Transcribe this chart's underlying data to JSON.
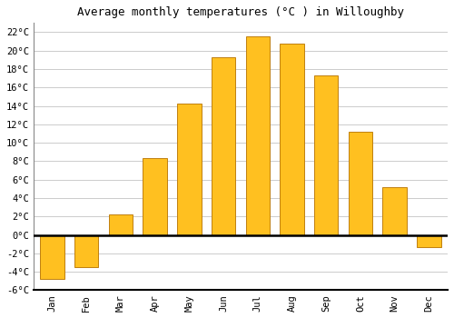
{
  "title": "Average monthly temperatures (°C ) in Willoughby",
  "months": [
    "Jan",
    "Feb",
    "Mar",
    "Apr",
    "May",
    "Jun",
    "Jul",
    "Aug",
    "Sep",
    "Oct",
    "Nov",
    "Dec"
  ],
  "values": [
    -4.8,
    -3.5,
    2.2,
    8.3,
    14.3,
    19.3,
    21.5,
    20.8,
    17.3,
    11.2,
    5.2,
    -1.3
  ],
  "bar_color_face": "#FFC020",
  "bar_color_edge": "#C08010",
  "background_color": "#FFFFFF",
  "grid_color": "#CCCCCC",
  "ylim": [
    -6,
    23
  ],
  "yticks": [
    -6,
    -4,
    -2,
    0,
    2,
    4,
    6,
    8,
    10,
    12,
    14,
    16,
    18,
    20,
    22
  ],
  "ytick_labels": [
    "-6°C",
    "-4°C",
    "-2°C",
    "0°C",
    "2°C",
    "4°C",
    "6°C",
    "8°C",
    "10°C",
    "12°C",
    "14°C",
    "16°C",
    "18°C",
    "20°C",
    "22°C"
  ],
  "title_fontsize": 9,
  "tick_fontsize": 7.5,
  "font_family": "monospace"
}
